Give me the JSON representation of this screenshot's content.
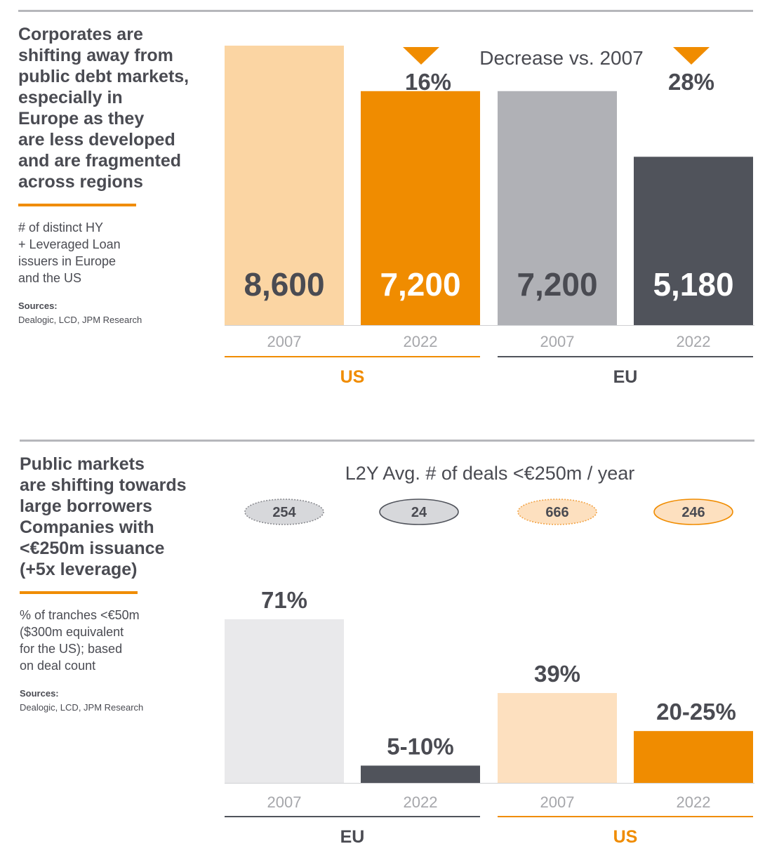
{
  "section1": {
    "title": "Corporates are\nshifting away from\npublic debt markets,\nespecially in\nEurope as they\nare less developed\nand are fragmented\nacross regions",
    "description": "# of distinct HY\n+ Leveraged Loan\nissuers in Europe\nand the US",
    "sources_label": "Sources:",
    "sources": "Dealogic, LCD, JPM Research"
  },
  "section2": {
    "title": "Public markets\nare shifting towards\nlarge borrowers\nCompanies with\n<€250m issuance\n(+5x leverage)",
    "description": "% of tranches <€50m\n($300m equivalent\nfor the US); based\non deal count",
    "sources_label": "Sources:",
    "sources": "Dealogic, LCD, JPM Research"
  },
  "colors": {
    "orange": "#f08c00",
    "light_orange": "#fbd5a3",
    "pale_orange": "#fde0bf",
    "gray": "#b0b1b6",
    "dark_gray": "#50535b",
    "light_gray": "#e9e9eb",
    "text": "#4a4b52",
    "tick": "#a6a7ab"
  },
  "chart_data": [
    {
      "type": "bar",
      "title": "",
      "annotation_title": "Decrease vs. 2007",
      "categories": [
        "2007",
        "2022",
        "2007",
        "2022"
      ],
      "groups": [
        {
          "name": "US",
          "categories": [
            "2007",
            "2022"
          ]
        },
        {
          "name": "EU",
          "categories": [
            "2007",
            "2022"
          ]
        }
      ],
      "values": [
        8600,
        7200,
        7200,
        5180
      ],
      "value_labels": [
        "8,600",
        "7,200",
        "7,200",
        "5,180"
      ],
      "decreases": [
        {
          "group": "US",
          "label": "16%"
        },
        {
          "group": "EU",
          "label": "28%"
        }
      ],
      "ylim": [
        0,
        8600
      ],
      "grid": false,
      "legend": "none"
    },
    {
      "type": "bar",
      "title": "",
      "deals_title": "L2Y Avg. # of deals <€250m / year",
      "categories": [
        "2007",
        "2022",
        "2007",
        "2022"
      ],
      "groups": [
        {
          "name": "EU",
          "categories": [
            "2007",
            "2022"
          ]
        },
        {
          "name": "US",
          "categories": [
            "2007",
            "2022"
          ]
        }
      ],
      "values": [
        71,
        7.5,
        39,
        22.5
      ],
      "value_labels": [
        "71%",
        "5-10%",
        "39%",
        "20-25%"
      ],
      "deals": [
        "254",
        "24",
        "666",
        "246"
      ],
      "ylim": [
        0,
        71
      ],
      "grid": false,
      "legend": "none"
    }
  ]
}
